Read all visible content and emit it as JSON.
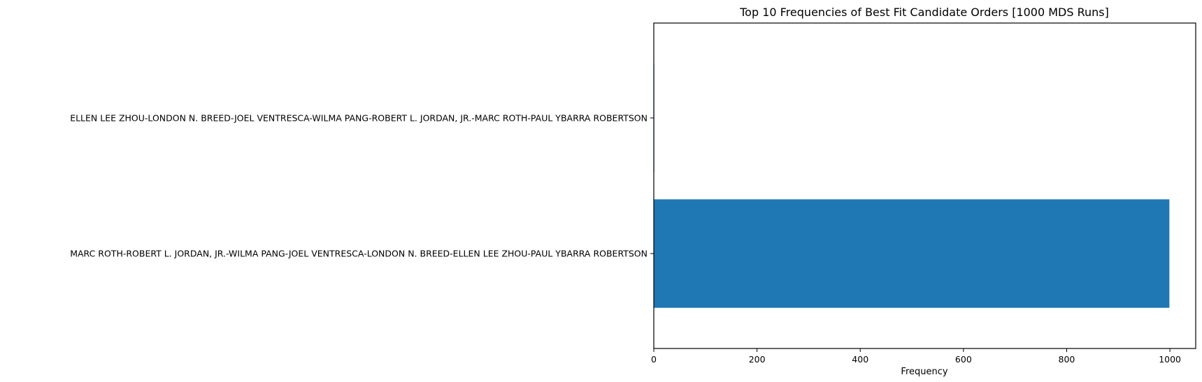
{
  "chart_data": {
    "type": "bar",
    "orientation": "horizontal",
    "title": "Top 10 Frequencies of Best Fit Candidate Orders [1000 MDS Runs]",
    "xlabel": "Frequency",
    "ylabel": "",
    "categories": [
      "MARC ROTH-ROBERT L. JORDAN, JR.-WILMA PANG-JOEL VENTRESCA-LONDON N. BREED-ELLEN LEE ZHOU-PAUL YBARRA ROBERTSON",
      "ELLEN LEE ZHOU-LONDON N. BREED-JOEL VENTRESCA-WILMA PANG-ROBERT L. JORDAN, JR.-MARC ROTH-PAUL YBARRA ROBERTSON"
    ],
    "values": [
      999,
      1
    ],
    "xlim": [
      0,
      1050
    ],
    "xticks": [
      0,
      200,
      400,
      600,
      800,
      1000
    ],
    "xtick_labels": [
      "0",
      "200",
      "400",
      "600",
      "800",
      "1000"
    ],
    "grid": false,
    "legend": "none",
    "bar_color": "#1f77b4"
  }
}
